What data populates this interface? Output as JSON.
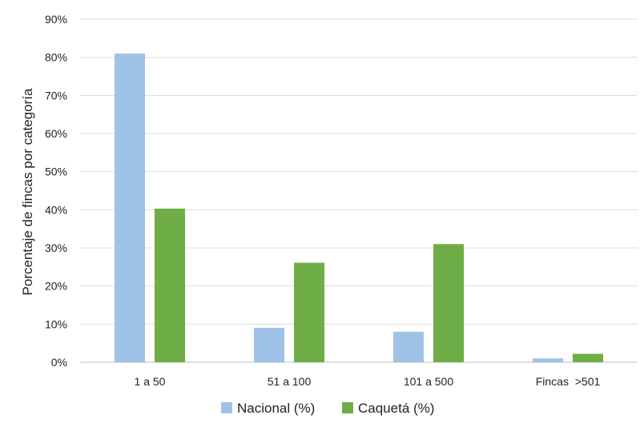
{
  "chart_data": {
    "type": "bar",
    "categories": [
      "1 a 50",
      "51 a 100",
      "101 a 500",
      "Fincas  >501"
    ],
    "series": [
      {
        "name": "Nacional (%)",
        "values": [
          81,
          9,
          8,
          1
        ],
        "color": "#9FC3E7"
      },
      {
        "name": "Caquetá (%)",
        "values": [
          40.3,
          26.1,
          31.0,
          2.2
        ],
        "color": "#6FAD46"
      }
    ],
    "ylabel": "Porcentaje de fincas por categoría",
    "ylim": [
      0,
      90
    ],
    "yticks": [
      "0%",
      "10%",
      "20%",
      "30%",
      "40%",
      "50%",
      "60%",
      "70%",
      "80%",
      "90%"
    ],
    "grid": true,
    "legend_position": "bottom"
  }
}
